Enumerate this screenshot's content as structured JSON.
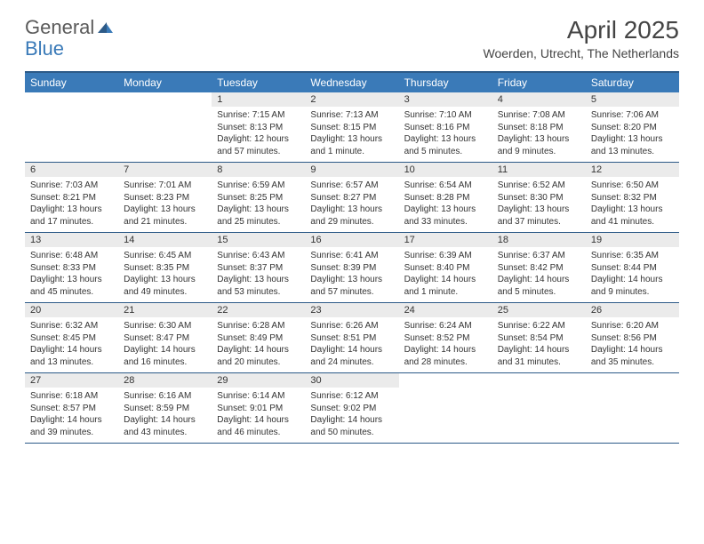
{
  "logo": {
    "general": "General",
    "blue": "Blue"
  },
  "title": "April 2025",
  "subtitle": "Woerden, Utrecht, The Netherlands",
  "colors": {
    "header_bg": "#3a7ab8",
    "header_border": "#2c5a87",
    "daynum_bg": "#ebebeb",
    "text": "#333333",
    "logo_gray": "#5a5a5a",
    "logo_blue": "#3a7ab8"
  },
  "day_names": [
    "Sunday",
    "Monday",
    "Tuesday",
    "Wednesday",
    "Thursday",
    "Friday",
    "Saturday"
  ],
  "weeks": [
    [
      null,
      null,
      {
        "n": "1",
        "sr": "Sunrise: 7:15 AM",
        "ss": "Sunset: 8:13 PM",
        "dl": "Daylight: 12 hours and 57 minutes."
      },
      {
        "n": "2",
        "sr": "Sunrise: 7:13 AM",
        "ss": "Sunset: 8:15 PM",
        "dl": "Daylight: 13 hours and 1 minute."
      },
      {
        "n": "3",
        "sr": "Sunrise: 7:10 AM",
        "ss": "Sunset: 8:16 PM",
        "dl": "Daylight: 13 hours and 5 minutes."
      },
      {
        "n": "4",
        "sr": "Sunrise: 7:08 AM",
        "ss": "Sunset: 8:18 PM",
        "dl": "Daylight: 13 hours and 9 minutes."
      },
      {
        "n": "5",
        "sr": "Sunrise: 7:06 AM",
        "ss": "Sunset: 8:20 PM",
        "dl": "Daylight: 13 hours and 13 minutes."
      }
    ],
    [
      {
        "n": "6",
        "sr": "Sunrise: 7:03 AM",
        "ss": "Sunset: 8:21 PM",
        "dl": "Daylight: 13 hours and 17 minutes."
      },
      {
        "n": "7",
        "sr": "Sunrise: 7:01 AM",
        "ss": "Sunset: 8:23 PM",
        "dl": "Daylight: 13 hours and 21 minutes."
      },
      {
        "n": "8",
        "sr": "Sunrise: 6:59 AM",
        "ss": "Sunset: 8:25 PM",
        "dl": "Daylight: 13 hours and 25 minutes."
      },
      {
        "n": "9",
        "sr": "Sunrise: 6:57 AM",
        "ss": "Sunset: 8:27 PM",
        "dl": "Daylight: 13 hours and 29 minutes."
      },
      {
        "n": "10",
        "sr": "Sunrise: 6:54 AM",
        "ss": "Sunset: 8:28 PM",
        "dl": "Daylight: 13 hours and 33 minutes."
      },
      {
        "n": "11",
        "sr": "Sunrise: 6:52 AM",
        "ss": "Sunset: 8:30 PM",
        "dl": "Daylight: 13 hours and 37 minutes."
      },
      {
        "n": "12",
        "sr": "Sunrise: 6:50 AM",
        "ss": "Sunset: 8:32 PM",
        "dl": "Daylight: 13 hours and 41 minutes."
      }
    ],
    [
      {
        "n": "13",
        "sr": "Sunrise: 6:48 AM",
        "ss": "Sunset: 8:33 PM",
        "dl": "Daylight: 13 hours and 45 minutes."
      },
      {
        "n": "14",
        "sr": "Sunrise: 6:45 AM",
        "ss": "Sunset: 8:35 PM",
        "dl": "Daylight: 13 hours and 49 minutes."
      },
      {
        "n": "15",
        "sr": "Sunrise: 6:43 AM",
        "ss": "Sunset: 8:37 PM",
        "dl": "Daylight: 13 hours and 53 minutes."
      },
      {
        "n": "16",
        "sr": "Sunrise: 6:41 AM",
        "ss": "Sunset: 8:39 PM",
        "dl": "Daylight: 13 hours and 57 minutes."
      },
      {
        "n": "17",
        "sr": "Sunrise: 6:39 AM",
        "ss": "Sunset: 8:40 PM",
        "dl": "Daylight: 14 hours and 1 minute."
      },
      {
        "n": "18",
        "sr": "Sunrise: 6:37 AM",
        "ss": "Sunset: 8:42 PM",
        "dl": "Daylight: 14 hours and 5 minutes."
      },
      {
        "n": "19",
        "sr": "Sunrise: 6:35 AM",
        "ss": "Sunset: 8:44 PM",
        "dl": "Daylight: 14 hours and 9 minutes."
      }
    ],
    [
      {
        "n": "20",
        "sr": "Sunrise: 6:32 AM",
        "ss": "Sunset: 8:45 PM",
        "dl": "Daylight: 14 hours and 13 minutes."
      },
      {
        "n": "21",
        "sr": "Sunrise: 6:30 AM",
        "ss": "Sunset: 8:47 PM",
        "dl": "Daylight: 14 hours and 16 minutes."
      },
      {
        "n": "22",
        "sr": "Sunrise: 6:28 AM",
        "ss": "Sunset: 8:49 PM",
        "dl": "Daylight: 14 hours and 20 minutes."
      },
      {
        "n": "23",
        "sr": "Sunrise: 6:26 AM",
        "ss": "Sunset: 8:51 PM",
        "dl": "Daylight: 14 hours and 24 minutes."
      },
      {
        "n": "24",
        "sr": "Sunrise: 6:24 AM",
        "ss": "Sunset: 8:52 PM",
        "dl": "Daylight: 14 hours and 28 minutes."
      },
      {
        "n": "25",
        "sr": "Sunrise: 6:22 AM",
        "ss": "Sunset: 8:54 PM",
        "dl": "Daylight: 14 hours and 31 minutes."
      },
      {
        "n": "26",
        "sr": "Sunrise: 6:20 AM",
        "ss": "Sunset: 8:56 PM",
        "dl": "Daylight: 14 hours and 35 minutes."
      }
    ],
    [
      {
        "n": "27",
        "sr": "Sunrise: 6:18 AM",
        "ss": "Sunset: 8:57 PM",
        "dl": "Daylight: 14 hours and 39 minutes."
      },
      {
        "n": "28",
        "sr": "Sunrise: 6:16 AM",
        "ss": "Sunset: 8:59 PM",
        "dl": "Daylight: 14 hours and 43 minutes."
      },
      {
        "n": "29",
        "sr": "Sunrise: 6:14 AM",
        "ss": "Sunset: 9:01 PM",
        "dl": "Daylight: 14 hours and 46 minutes."
      },
      {
        "n": "30",
        "sr": "Sunrise: 6:12 AM",
        "ss": "Sunset: 9:02 PM",
        "dl": "Daylight: 14 hours and 50 minutes."
      },
      null,
      null,
      null
    ]
  ]
}
